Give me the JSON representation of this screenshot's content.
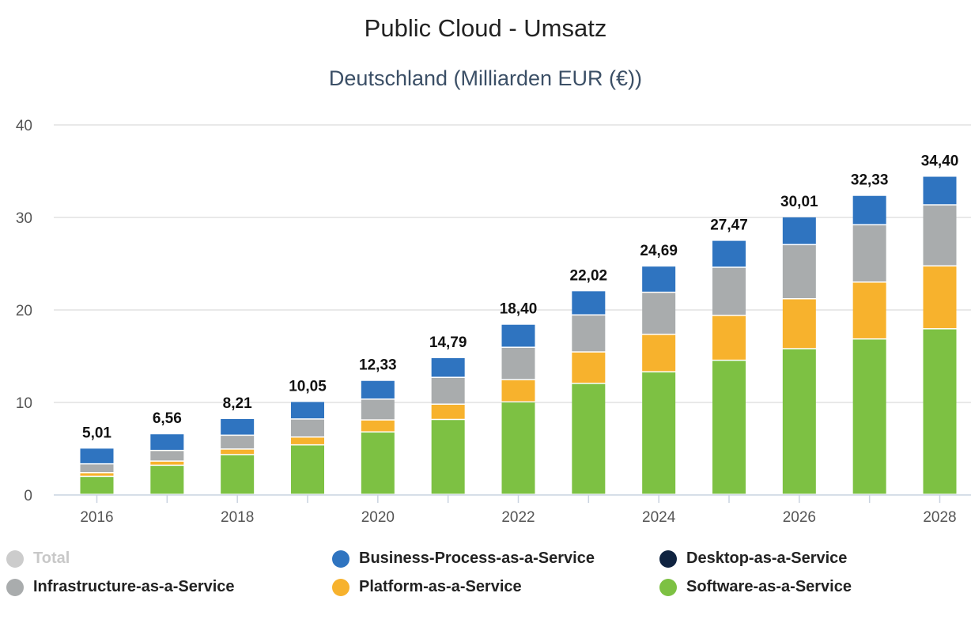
{
  "chart_data": {
    "type": "bar",
    "stacked": true,
    "title": "Public Cloud - Umsatz",
    "subtitle": "Deutschland (Milliarden EUR (€))",
    "xlabel": "",
    "ylabel": "",
    "ylim": [
      0,
      40
    ],
    "yticks": [
      0,
      10,
      20,
      30,
      40
    ],
    "grid": true,
    "legend_position": "bottom",
    "categories": [
      "2016",
      "2017",
      "2018",
      "2019",
      "2020",
      "2021",
      "2022",
      "2023",
      "2024",
      "2025",
      "2026",
      "2027",
      "2028"
    ],
    "xtick_labels": [
      "2016",
      "",
      "2018",
      "",
      "2020",
      "",
      "2022",
      "",
      "2024",
      "",
      "2026",
      "",
      "2028"
    ],
    "series": [
      {
        "name": "Software-as-a-Service",
        "color": "#7dc143",
        "values": [
          1.95,
          3.15,
          4.3,
          5.35,
          6.75,
          8.1,
          10.0,
          12.0,
          13.25,
          14.5,
          15.75,
          16.8,
          17.9
        ]
      },
      {
        "name": "Platform-as-a-Service",
        "color": "#f7b22d",
        "values": [
          0.4,
          0.45,
          0.6,
          0.85,
          1.3,
          1.65,
          2.4,
          3.4,
          4.05,
          4.85,
          5.4,
          6.15,
          6.8
        ]
      },
      {
        "name": "Infrastructure-as-a-Service",
        "color": "#a9acad",
        "values": [
          0.95,
          1.15,
          1.5,
          1.95,
          2.25,
          2.9,
          3.5,
          4.0,
          4.55,
          5.2,
          5.85,
          6.2,
          6.6
        ]
      },
      {
        "name": "Desktop-as-a-Service",
        "color": "#0f2340",
        "values": [
          0,
          0,
          0,
          0,
          0,
          0,
          0,
          0,
          0,
          0,
          0,
          0,
          0
        ]
      },
      {
        "name": "Business-Process-as-a-Service",
        "color": "#2f74c0",
        "values": [
          1.71,
          1.81,
          1.81,
          1.9,
          2.03,
          2.14,
          2.5,
          2.62,
          2.84,
          2.92,
          3.01,
          3.18,
          3.1
        ]
      }
    ],
    "totals": [
      "5,01",
      "6,56",
      "8,21",
      "10,05",
      "12,33",
      "14,79",
      "18,40",
      "22,02",
      "24,69",
      "27,47",
      "30,01",
      "32,33",
      "34,40"
    ],
    "legend": [
      {
        "name": "Total",
        "color": "#cccccc",
        "hidden": true
      },
      {
        "name": "Business-Process-as-a-Service",
        "color": "#2f74c0"
      },
      {
        "name": "Desktop-as-a-Service",
        "color": "#0f2340"
      },
      {
        "name": "Infrastructure-as-a-Service",
        "color": "#a9acad"
      },
      {
        "name": "Platform-as-a-Service",
        "color": "#f7b22d"
      },
      {
        "name": "Software-as-a-Service",
        "color": "#7dc143"
      }
    ]
  }
}
